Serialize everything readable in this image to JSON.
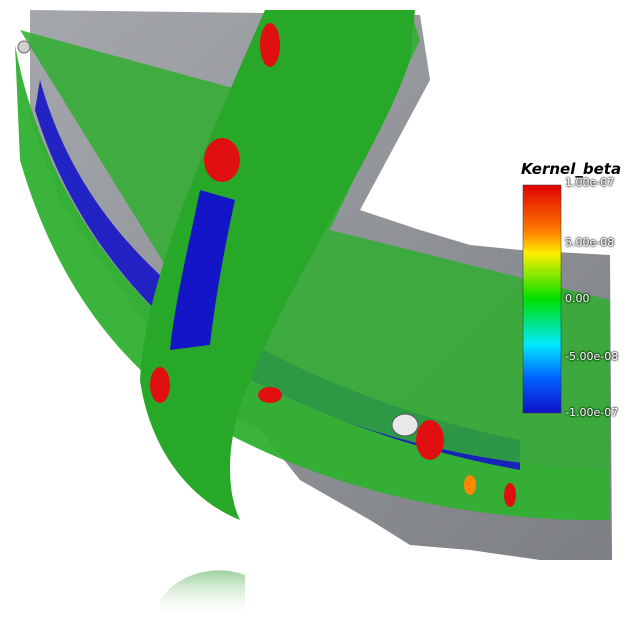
{
  "colorbar": {
    "title": "Kernel_beta",
    "ticks": [
      "1.00e-07",
      "5.00e-08",
      "0.00",
      "-5.00e-08",
      "-1.00e-07"
    ]
  },
  "colors": {
    "positive": "#e01010",
    "zero": "#20b020",
    "negative": "#1010c8",
    "terrain": "#8a8d92"
  }
}
